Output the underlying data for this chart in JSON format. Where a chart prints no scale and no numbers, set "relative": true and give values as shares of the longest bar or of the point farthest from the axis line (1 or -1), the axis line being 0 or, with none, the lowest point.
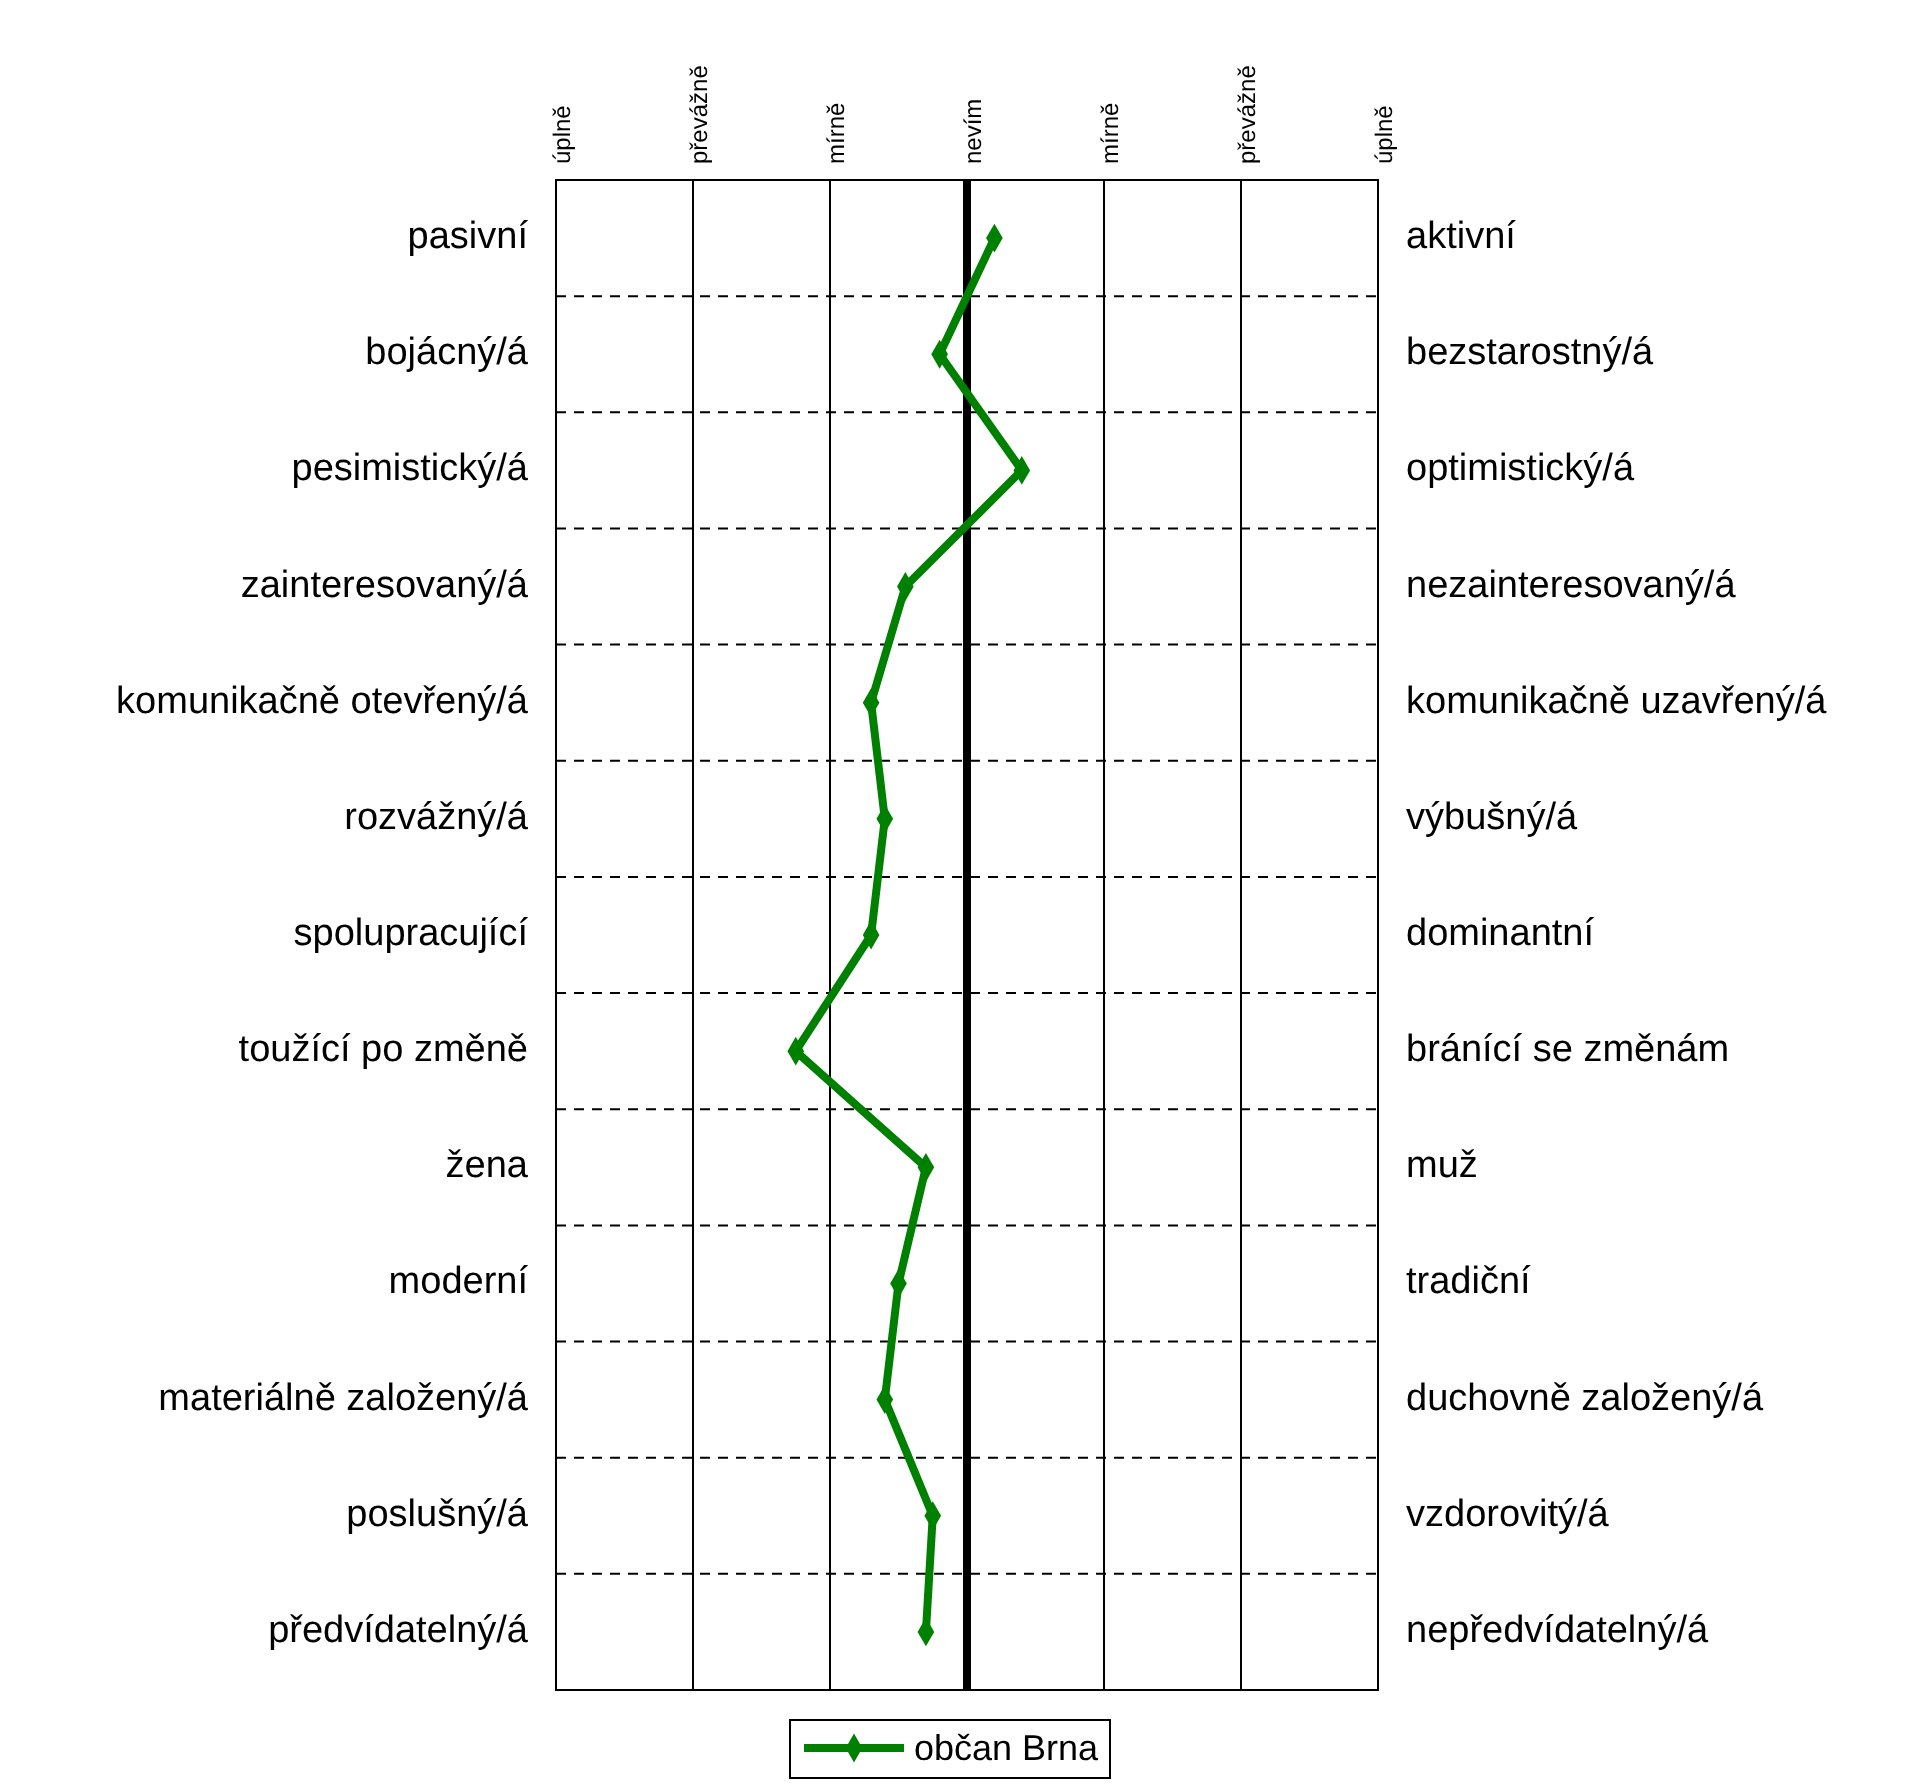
{
  "chart_data": {
    "type": "line",
    "orientation": "horizontal",
    "relative": true,
    "categories": [
      "pasivní",
      "bojácný/á",
      "pesimistický/á",
      "zainteresovaný/á",
      "komunikačně otevřený/á",
      "rozvážný/á",
      "spolupracující",
      "toužící po změně",
      "žena",
      "moderní",
      "materiálně založený/á",
      "poslušný/á",
      "předvídatelný/á"
    ],
    "y2_categories": [
      "aktivní",
      "bezstarostný/á",
      "optimistický/á",
      "nezainteresovaný/á",
      "komunikačně uzavřený/á",
      "výbušný/á",
      "dominantní",
      "bránící se změnám",
      "muž",
      "tradiční",
      "duchovně založený/á",
      "vzdorovitý/á",
      "nepředvídatelný/á"
    ],
    "series": [
      {
        "name": "občan Brna",
        "color": "#008000",
        "values": [
          0.16,
          -0.16,
          0.32,
          -0.36,
          -0.56,
          -0.48,
          -0.56,
          -1,
          -0.24,
          -0.4,
          -0.48,
          -0.2,
          -0.24
        ]
      }
    ],
    "annotations": [
      "úplně",
      "převážně",
      "mírně",
      "nevím",
      "mírně",
      "převážně",
      "úplně"
    ],
    "ref_lines": [
      {
        "axis": "x",
        "value": 0,
        "color": "#000000"
      },
      {
        "axis": "x",
        "value": -1.6
      },
      {
        "axis": "x",
        "value": -0.8
      },
      {
        "axis": "x",
        "value": 0.8
      },
      {
        "axis": "x",
        "value": 1.6
      }
    ],
    "grid": "y",
    "legend": "bottom",
    "marker": "diamond",
    "line_style": "solid"
  }
}
